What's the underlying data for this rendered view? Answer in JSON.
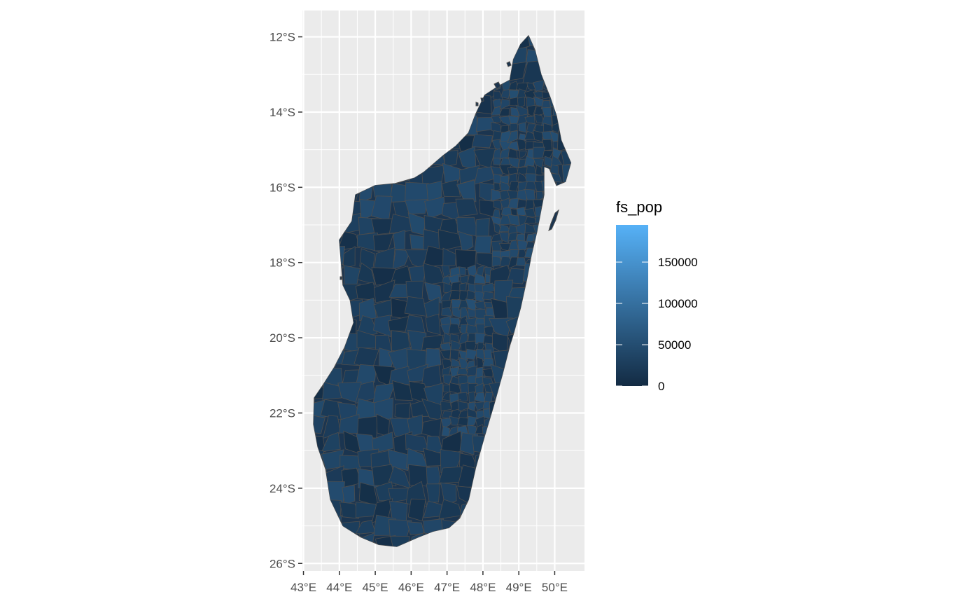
{
  "map": {
    "type": "choropleth",
    "region": "Madagascar",
    "crs_units": "degrees",
    "x_range": [
      42.97,
      50.83
    ],
    "y_range": [
      -26.2,
      -11.3
    ],
    "x_ticks": [
      {
        "value": 43,
        "label": "43°E"
      },
      {
        "value": 44,
        "label": "44°E"
      },
      {
        "value": 45,
        "label": "45°E"
      },
      {
        "value": 46,
        "label": "46°E"
      },
      {
        "value": 47,
        "label": "47°E"
      },
      {
        "value": 48,
        "label": "48°E"
      },
      {
        "value": 49,
        "label": "49°E"
      },
      {
        "value": 50,
        "label": "50°E"
      }
    ],
    "y_ticks": [
      {
        "value": -12,
        "label": "12°S"
      },
      {
        "value": -14,
        "label": "14°S"
      },
      {
        "value": -16,
        "label": "16°S"
      },
      {
        "value": -18,
        "label": "18°S"
      },
      {
        "value": -20,
        "label": "20°S"
      },
      {
        "value": -22,
        "label": "22°S"
      },
      {
        "value": -24,
        "label": "24°S"
      },
      {
        "value": -26,
        "label": "26°S"
      }
    ],
    "grid": true,
    "panel_background": "#ebebeb",
    "grid_color": "#ffffff",
    "boundary_color": "#4d4d4d",
    "outline_lonlat": [
      [
        49.27,
        -11.97
      ],
      [
        49.45,
        -12.35
      ],
      [
        49.62,
        -13.0
      ],
      [
        49.87,
        -13.6
      ],
      [
        50.05,
        -14.1
      ],
      [
        50.18,
        -14.75
      ],
      [
        50.45,
        -15.35
      ],
      [
        50.3,
        -15.85
      ],
      [
        50.05,
        -15.95
      ],
      [
        49.85,
        -15.5
      ],
      [
        49.7,
        -15.45
      ],
      [
        49.7,
        -16.2
      ],
      [
        49.5,
        -17.2
      ],
      [
        49.35,
        -17.8
      ],
      [
        49.22,
        -18.45
      ],
      [
        49.05,
        -19.2
      ],
      [
        48.85,
        -19.9
      ],
      [
        48.75,
        -20.2
      ],
      [
        48.55,
        -20.95
      ],
      [
        48.3,
        -21.8
      ],
      [
        48.05,
        -22.6
      ],
      [
        47.8,
        -23.45
      ],
      [
        47.6,
        -24.3
      ],
      [
        47.35,
        -24.8
      ],
      [
        47.05,
        -25.05
      ],
      [
        46.6,
        -25.15
      ],
      [
        46.2,
        -25.3
      ],
      [
        45.6,
        -25.55
      ],
      [
        45.1,
        -25.5
      ],
      [
        44.6,
        -25.3
      ],
      [
        44.1,
        -25.0
      ],
      [
        43.75,
        -24.3
      ],
      [
        43.62,
        -23.5
      ],
      [
        43.4,
        -22.9
      ],
      [
        43.28,
        -22.3
      ],
      [
        43.3,
        -21.6
      ],
      [
        43.55,
        -21.25
      ],
      [
        43.85,
        -20.8
      ],
      [
        44.15,
        -20.25
      ],
      [
        44.4,
        -19.6
      ],
      [
        44.3,
        -19.0
      ],
      [
        44.1,
        -18.6
      ],
      [
        44.05,
        -18.0
      ],
      [
        44.0,
        -17.4
      ],
      [
        44.35,
        -16.9
      ],
      [
        44.45,
        -16.2
      ],
      [
        45.0,
        -15.95
      ],
      [
        45.55,
        -15.9
      ],
      [
        46.1,
        -15.75
      ],
      [
        46.35,
        -15.6
      ],
      [
        46.9,
        -15.15
      ],
      [
        47.25,
        -14.9
      ],
      [
        47.6,
        -14.55
      ],
      [
        47.8,
        -14.05
      ],
      [
        48.05,
        -13.55
      ],
      [
        48.45,
        -13.3
      ],
      [
        48.75,
        -13.15
      ],
      [
        48.85,
        -12.6
      ],
      [
        49.05,
        -12.2
      ]
    ]
  },
  "legend": {
    "title": "fs_pop",
    "limits": [
      0,
      195000
    ],
    "low_color": "#132b43",
    "high_color": "#56b1f7",
    "breaks": [
      {
        "value": 0,
        "label": "0"
      },
      {
        "value": 50000,
        "label": "50000"
      },
      {
        "value": 100000,
        "label": "100000"
      },
      {
        "value": 150000,
        "label": "150000"
      }
    ]
  }
}
